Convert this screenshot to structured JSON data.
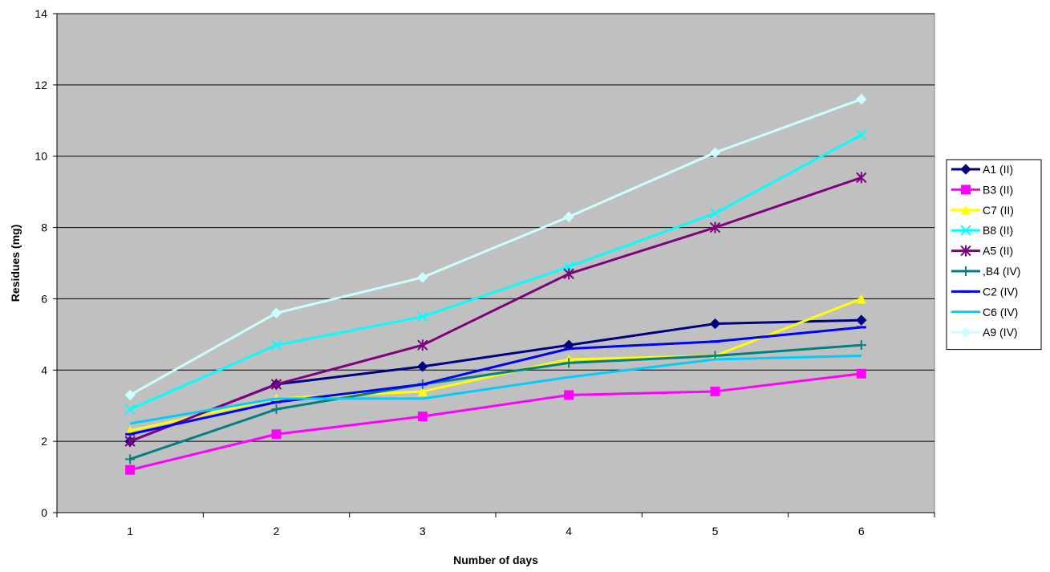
{
  "chart_data": {
    "type": "line",
    "title": "",
    "xlabel": "Number of days",
    "ylabel": "Residues (mg)",
    "categories": [
      "1",
      "2",
      "3",
      "4",
      "5",
      "6"
    ],
    "ylim": [
      0,
      14
    ],
    "yticks": [
      "0",
      "2",
      "4",
      "6",
      "8",
      "10",
      "12",
      "14"
    ],
    "grid": "horizontal",
    "plot_background": "#c0c0c0",
    "legend_position": "right",
    "series": [
      {
        "name": "A1 (II)",
        "color": "#000080",
        "marker": "diamond",
        "values": [
          2.0,
          3.6,
          4.1,
          4.7,
          5.3,
          5.4
        ]
      },
      {
        "name": "B3 (II)",
        "color": "#ff00ff",
        "marker": "square",
        "values": [
          1.2,
          2.2,
          2.7,
          3.3,
          3.4,
          3.9
        ]
      },
      {
        "name": "C7 (II)",
        "color": "#ffff00",
        "marker": "triangle",
        "values": [
          2.3,
          3.2,
          3.4,
          4.3,
          4.4,
          6.0
        ]
      },
      {
        "name": "B8 (II)",
        "color": "#00ffff",
        "marker": "x",
        "values": [
          2.9,
          4.7,
          5.5,
          6.9,
          8.4,
          10.6
        ]
      },
      {
        "name": "A5 (II)",
        "color": "#800080",
        "marker": "star",
        "values": [
          2.0,
          3.6,
          4.7,
          6.7,
          8.0,
          9.4
        ]
      },
      {
        "name": ",B4 (IV)",
        "color": "#008080",
        "marker": "plus",
        "values": [
          1.5,
          2.9,
          3.6,
          4.2,
          4.4,
          4.7
        ]
      },
      {
        "name": "C2 (IV)",
        "color": "#0000ff",
        "marker": "dash",
        "values": [
          2.2,
          3.1,
          3.6,
          4.6,
          4.8,
          5.2
        ]
      },
      {
        "name": "C6 (IV)",
        "color": "#00ccff",
        "marker": "none",
        "values": [
          2.5,
          3.2,
          3.2,
          3.8,
          4.3,
          4.4
        ]
      },
      {
        "name": "A9 (IV)",
        "color": "#ccffff",
        "marker": "diamond",
        "values": [
          3.3,
          5.6,
          6.6,
          8.3,
          10.1,
          11.6
        ]
      }
    ]
  }
}
